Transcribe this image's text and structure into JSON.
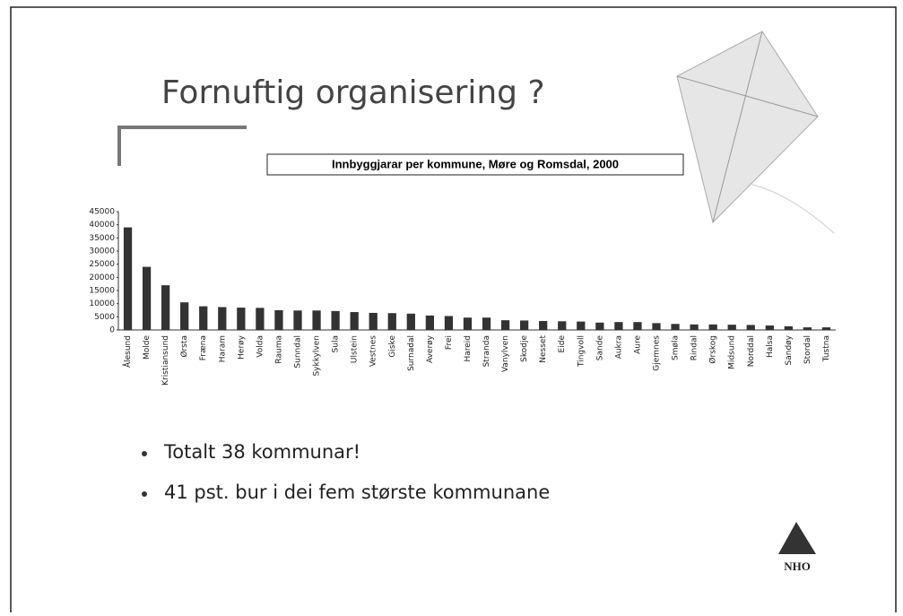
{
  "slide": {
    "title": "Fornuftig organisering ?",
    "bullets": [
      "Totalt 38 kommunar!",
      "41 pst. bur i dei fem største kommunane"
    ],
    "logo": "NHO"
  },
  "chart_data": {
    "type": "bar",
    "title": "Innbyggjarar per kommune, Møre og Romsdal, 2000",
    "categories": [
      "Ålesund",
      "Molde",
      "Kristiansund",
      "Ørsta",
      "Fræna",
      "Haram",
      "Herøy",
      "Volda",
      "Rauma",
      "Sunndal",
      "Sykkylven",
      "Sula",
      "Ulstein",
      "Vestnes",
      "Giske",
      "Surnadal",
      "Averøy",
      "Frei",
      "Hareid",
      "Stranda",
      "Vanylven",
      "Skodje",
      "Nesset",
      "Eide",
      "Tingvoll",
      "Sande",
      "Aukra",
      "Aure",
      "Gjemnes",
      "Smøla",
      "Rindal",
      "Ørskog",
      "Midsund",
      "Norddal",
      "Halsa",
      "Sandøy",
      "Stordal",
      "Tustna"
    ],
    "values": [
      39000,
      24000,
      17000,
      10500,
      9000,
      8700,
      8500,
      8400,
      7500,
      7400,
      7400,
      7200,
      6800,
      6500,
      6400,
      6200,
      5500,
      5300,
      4700,
      4700,
      3700,
      3600,
      3400,
      3300,
      3200,
      2800,
      3000,
      3000,
      2600,
      2300,
      2100,
      2100,
      2000,
      1900,
      1700,
      1400,
      1000,
      1000
    ],
    "color": "#333333",
    "ylim": [
      0,
      45000
    ],
    "yticks": [
      0,
      5000,
      10000,
      15000,
      20000,
      25000,
      30000,
      35000,
      40000,
      45000
    ]
  }
}
